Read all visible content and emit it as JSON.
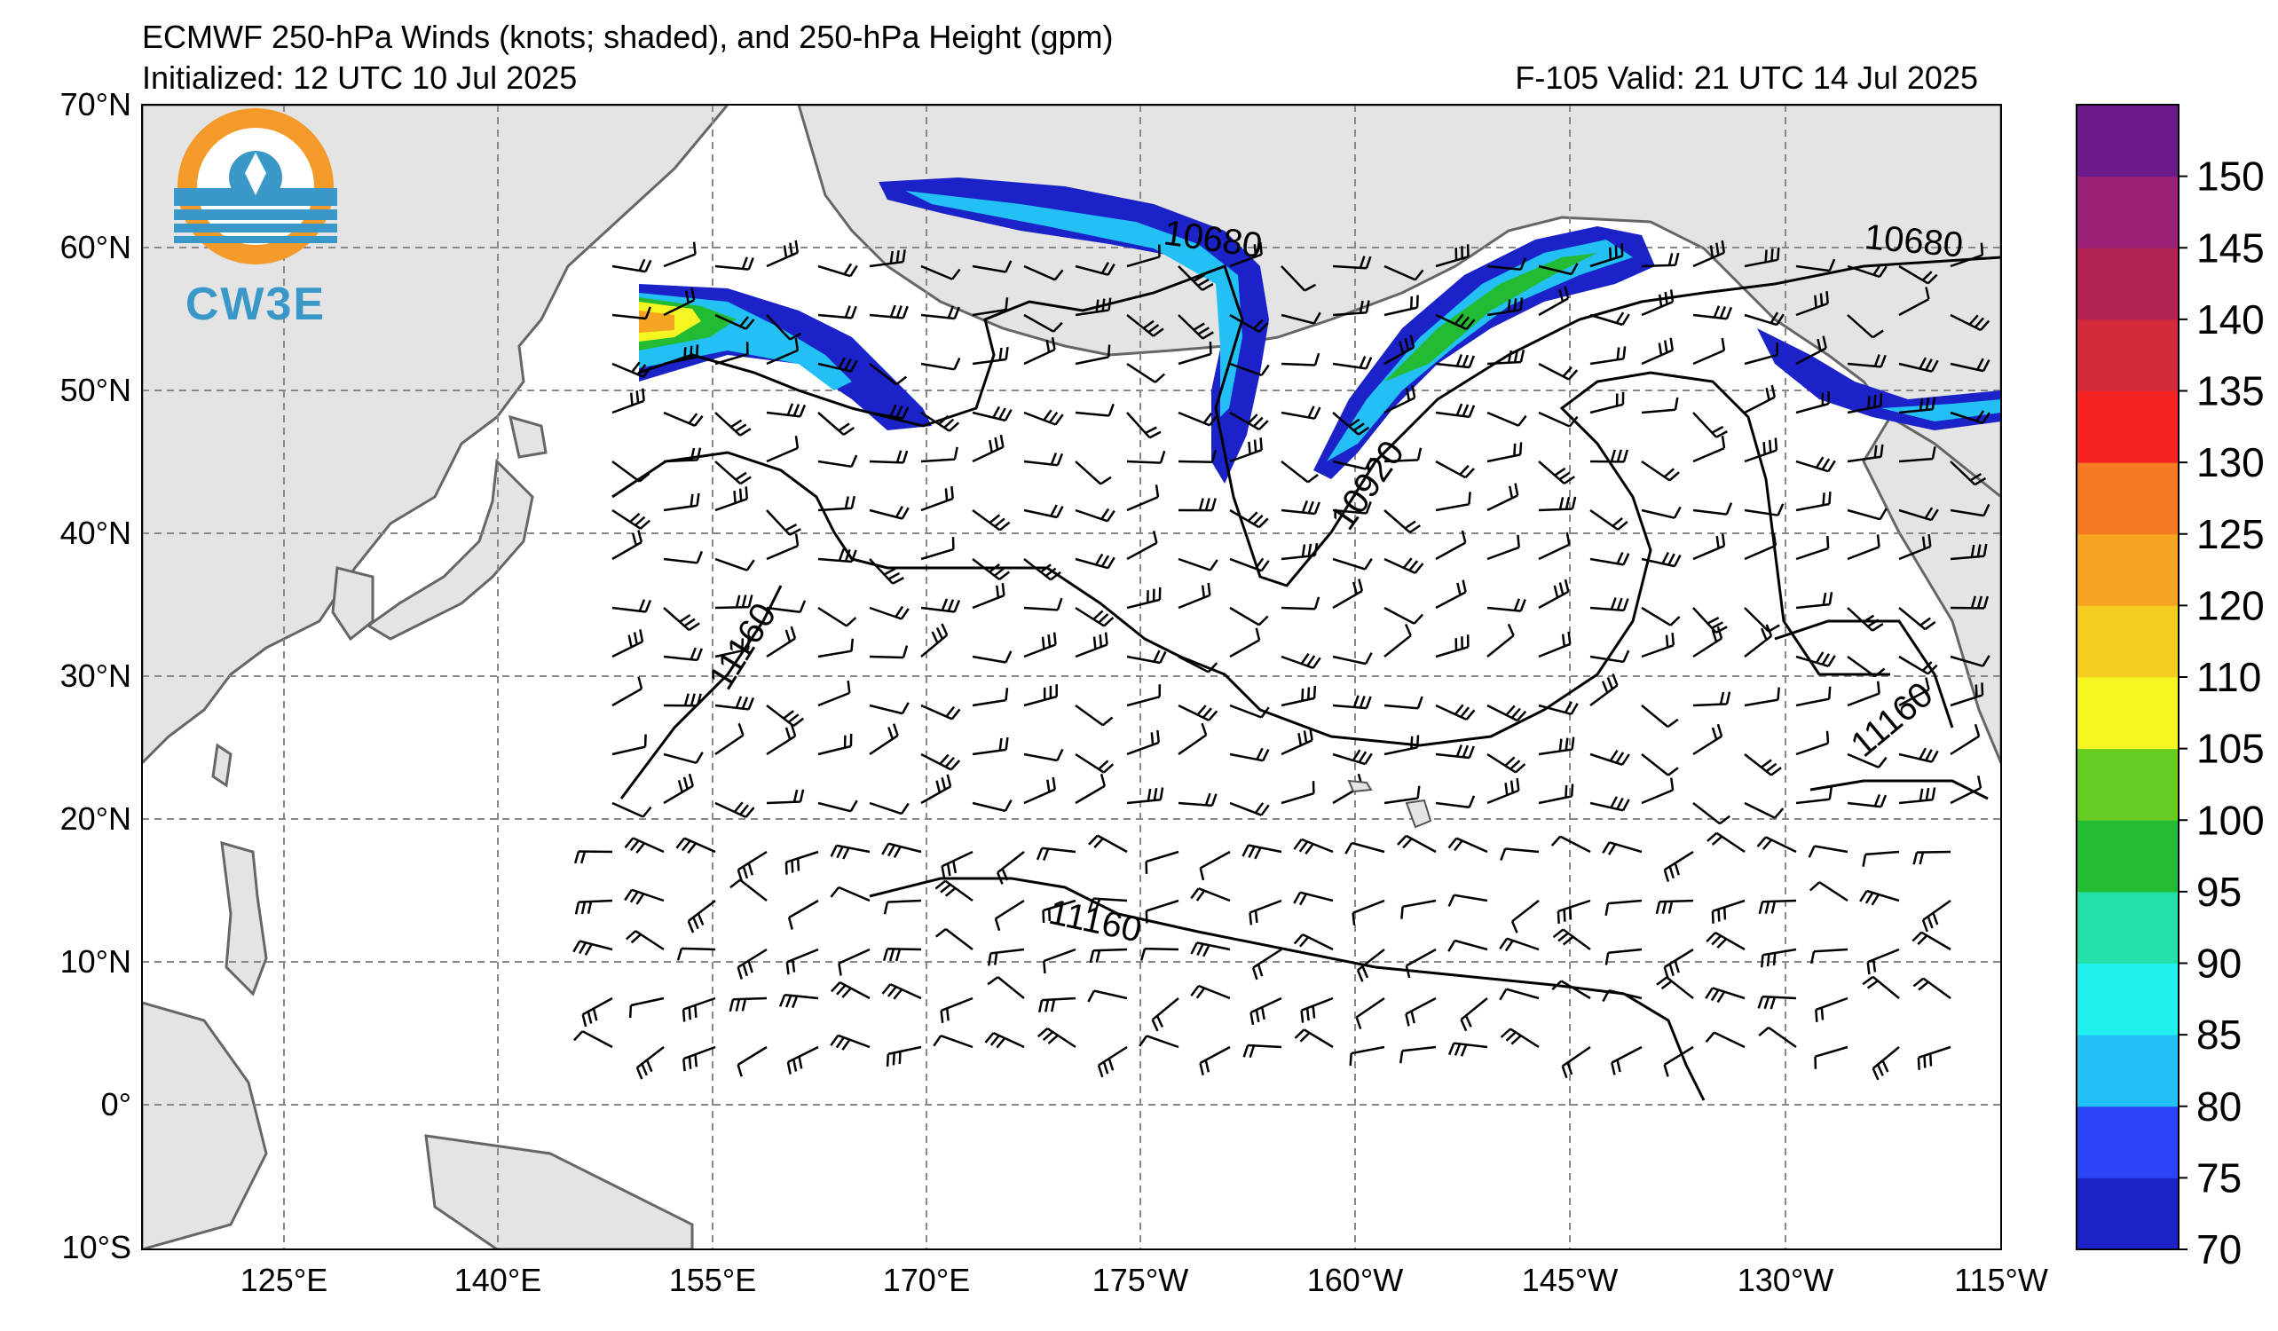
{
  "title_line1": "ECMWF 250-hPa Winds (knots; shaded), and 250-hPa Height (gpm)",
  "title_init": "Initialized: 12 UTC 10 Jul 2025",
  "title_valid": "F-105  Valid: 21 UTC 14 Jul 2025",
  "logo": {
    "text": "CW3E",
    "color": "#3a98c8",
    "accent": "#f39a2b"
  },
  "lat_labels": [
    "70°N",
    "60°N",
    "50°N",
    "40°N",
    "30°N",
    "20°N",
    "10°N",
    "0°",
    "10°S"
  ],
  "lon_labels": [
    "125°E",
    "140°E",
    "155°E",
    "170°E",
    "175°W",
    "160°W",
    "145°W",
    "130°W",
    "115°W"
  ],
  "colorbar": {
    "labels": [
      "70",
      "75",
      "80",
      "85",
      "90",
      "95",
      "100",
      "105",
      "110",
      "120",
      "125",
      "130",
      "135",
      "140",
      "145",
      "150"
    ],
    "colors": [
      "#1a22c8",
      "#2a45f5",
      "#22c0f5",
      "#20f0f0",
      "#22e0a8",
      "#22bb33",
      "#66cc22",
      "#f5f522",
      "#f5cc22",
      "#f5a522",
      "#f57a22",
      "#f52222",
      "#d42a3a",
      "#b22255",
      "#992277",
      "#6a1a8a"
    ]
  },
  "contour_labels": [
    "10680",
    "10680",
    "10920",
    "11160",
    "11160",
    "11160"
  ]
}
